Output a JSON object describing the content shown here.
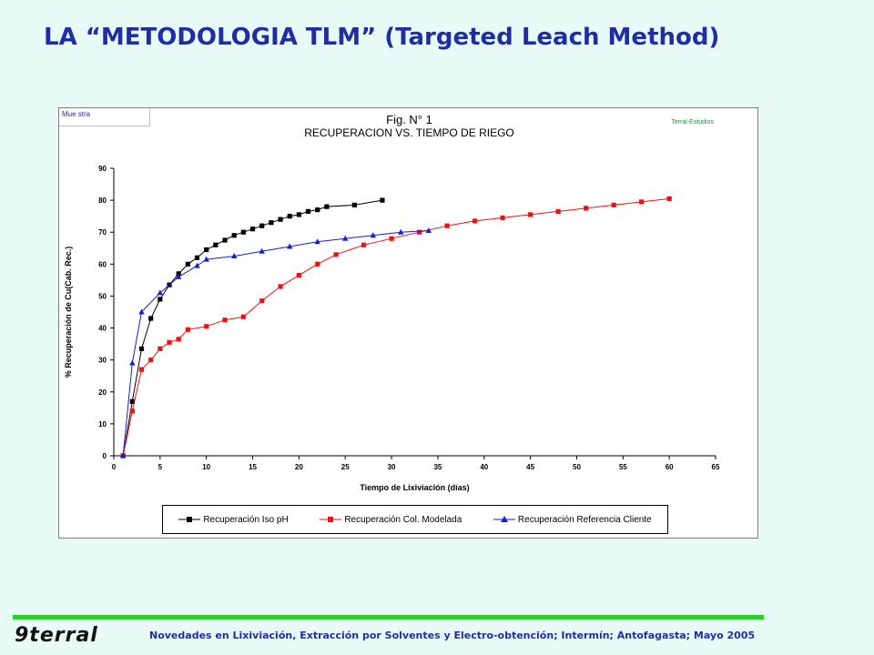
{
  "slide": {
    "title": "LA “METODOLOGIA TLM” (Targeted Leach Method)",
    "footer_text": "Novedades en Lixiviación, Extracción por Solventes y Electro-obtención;  Intermín;  Antofagasta;  Mayo 2005",
    "logo_text": "9terral"
  },
  "chart_frame": {
    "sample_label": "Mue stra",
    "company_tag": "Terral-Estudios"
  },
  "chart_data": {
    "type": "line",
    "title": "Fig. N° 1",
    "subtitle": "RECUPERACION VS. TIEMPO DE RIEGO",
    "xlabel": "Tiempo de Lixiviación (días)",
    "ylabel": "% Recuperación de Cu(Cab. Rec.)",
    "xlim": [
      0,
      65
    ],
    "ylim": [
      0,
      90
    ],
    "xticks": [
      0,
      5,
      10,
      15,
      20,
      25,
      30,
      35,
      40,
      45,
      50,
      55,
      60,
      65
    ],
    "yticks": [
      0,
      10,
      20,
      30,
      40,
      50,
      60,
      70,
      80,
      90
    ],
    "grid": false,
    "legend_position": "bottom",
    "series": [
      {
        "name": "Recuperación Iso pH",
        "color": "#000000",
        "marker": "square",
        "x": [
          1,
          2,
          3,
          4,
          5,
          6,
          7,
          8,
          9,
          10,
          11,
          12,
          13,
          14,
          15,
          16,
          17,
          18,
          19,
          20,
          21,
          22,
          23,
          26,
          29
        ],
        "y": [
          0,
          17,
          33.5,
          43,
          49,
          53.5,
          57,
          60,
          62,
          64.5,
          66,
          67.5,
          69,
          70,
          71,
          72,
          73,
          74,
          75,
          75.5,
          76.5,
          77,
          78,
          78.5,
          80
        ]
      },
      {
        "name": "Recuperación Col. Modelada",
        "color": "#ee1111",
        "marker": "square",
        "x": [
          1,
          2,
          3,
          4,
          5,
          6,
          7,
          8,
          10,
          12,
          14,
          16,
          18,
          20,
          22,
          24,
          27,
          30,
          33,
          36,
          39,
          42,
          45,
          48,
          51,
          54,
          57,
          60
        ],
        "y": [
          0,
          14,
          27,
          30,
          33.5,
          35.5,
          36.5,
          39.5,
          40.5,
          42.5,
          43.5,
          48.5,
          53,
          56.5,
          60,
          63,
          66,
          68,
          70,
          72,
          73.5,
          74.5,
          75.5,
          76.5,
          77.5,
          78.5,
          79.5,
          80.5
        ]
      },
      {
        "name": "Recuperación Referencia Cliente",
        "color": "#1122cc",
        "marker": "triangle",
        "x": [
          1,
          2,
          3,
          5,
          7,
          9,
          10,
          13,
          16,
          19,
          22,
          25,
          28,
          31,
          34
        ],
        "y": [
          0,
          29,
          45,
          51,
          56,
          59.5,
          61.5,
          62.5,
          64,
          65.5,
          67,
          68,
          69,
          70,
          70.5
        ]
      }
    ]
  }
}
